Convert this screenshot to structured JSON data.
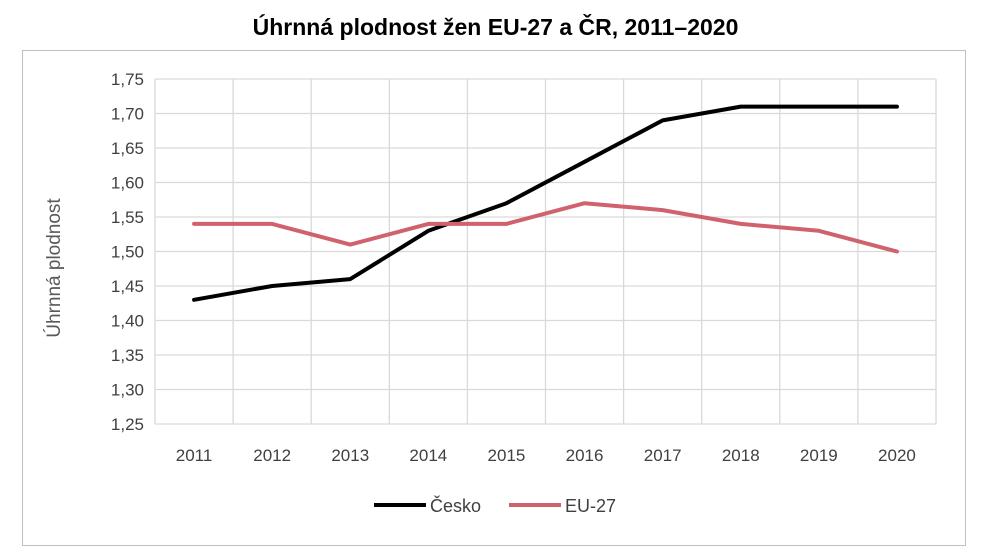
{
  "chart_data": {
    "type": "line",
    "title": "Úhrnná plodnost žen EU-27 a ČR, 2011–2020",
    "xlabel": "",
    "ylabel": "Úhrnná plodnost",
    "categories": [
      "2011",
      "2012",
      "2013",
      "2014",
      "2015",
      "2016",
      "2017",
      "2018",
      "2019",
      "2020"
    ],
    "ylim": [
      1.25,
      1.75
    ],
    "yticks": [
      "1,25",
      "1,30",
      "1,35",
      "1,40",
      "1,45",
      "1,50",
      "1,55",
      "1,60",
      "1,65",
      "1,70",
      "1,75"
    ],
    "grid": true,
    "legend_position": "bottom",
    "series": [
      {
        "name": "Česko",
        "color": "#000000",
        "values": [
          1.43,
          1.45,
          1.46,
          1.53,
          1.57,
          1.63,
          1.69,
          1.71,
          1.71,
          1.71
        ]
      },
      {
        "name": "EU-27",
        "color": "#d0626e",
        "values": [
          1.54,
          1.54,
          1.51,
          1.54,
          1.54,
          1.57,
          1.56,
          1.54,
          1.53,
          1.5
        ]
      }
    ]
  }
}
